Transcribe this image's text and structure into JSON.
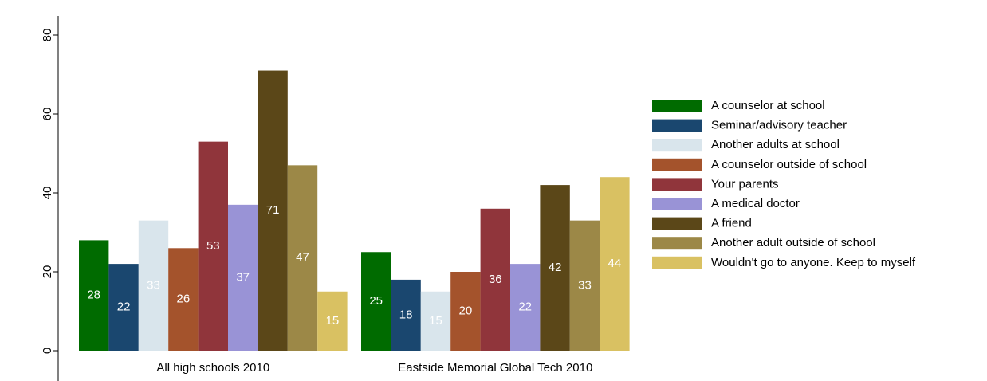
{
  "chart_data": {
    "type": "bar",
    "categories": [
      "All high schools 2010",
      "Eastside Memorial Global Tech 2010"
    ],
    "series": [
      {
        "name": "A counselor at school",
        "color": "#006b00",
        "values": [
          28,
          25
        ]
      },
      {
        "name": "Seminar/advisory teacher",
        "color": "#1a476f",
        "values": [
          22,
          18
        ]
      },
      {
        "name": "Another adults at school",
        "color": "#d9e5ec",
        "values": [
          33,
          15
        ]
      },
      {
        "name": "A counselor outside of school",
        "color": "#a4532c",
        "values": [
          26,
          20
        ]
      },
      {
        "name": "Your parents",
        "color": "#90353b",
        "values": [
          53,
          36
        ]
      },
      {
        "name": "A medical doctor",
        "color": "#9993d6",
        "values": [
          37,
          22
        ]
      },
      {
        "name": "A friend",
        "color": "#5b4718",
        "values": [
          71,
          42
        ]
      },
      {
        "name": "Another adult outside of school",
        "color": "#9c8847",
        "values": [
          47,
          33
        ]
      },
      {
        "name": "Wouldn't go to anyone. Keep to myself",
        "color": "#d9c162",
        "values": [
          15,
          44
        ]
      }
    ],
    "ylim": [
      0,
      80
    ],
    "yticks": [
      0,
      20,
      40,
      60,
      80
    ],
    "legend": "right",
    "grid": false
  }
}
